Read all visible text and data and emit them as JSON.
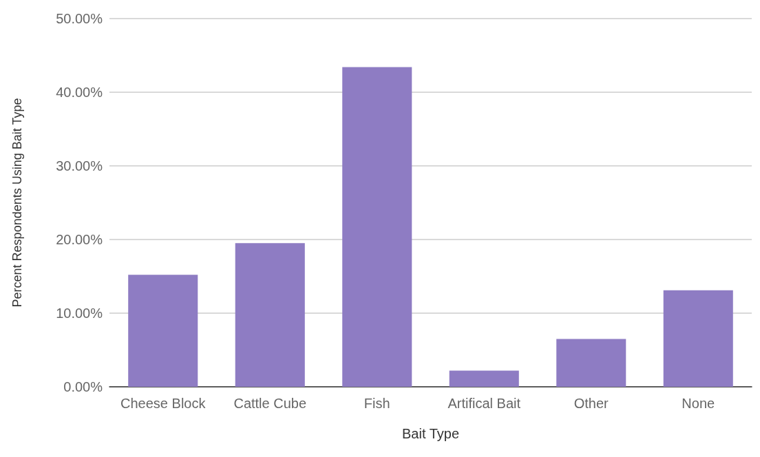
{
  "chart_data": {
    "type": "bar",
    "xlabel": "Bait Type",
    "ylabel": "Percent Respondents Using Bait Type",
    "categories": [
      "Cheese Block",
      "Cattle Cube",
      "Fish",
      "Artifical Bait",
      "Other",
      "None"
    ],
    "values": [
      15.2,
      19.5,
      43.4,
      2.2,
      6.5,
      13.1
    ],
    "color": "#8e7cc3",
    "ylim": [
      0,
      50
    ],
    "yticks": [
      {
        "value": 0,
        "label": "0.00%"
      },
      {
        "value": 10,
        "label": "10.00%"
      },
      {
        "value": 20,
        "label": "20.00%"
      },
      {
        "value": 30,
        "label": "30.00%"
      },
      {
        "value": 40,
        "label": "40.00%"
      },
      {
        "value": 50,
        "label": "50.00%"
      }
    ],
    "grid": "y"
  }
}
